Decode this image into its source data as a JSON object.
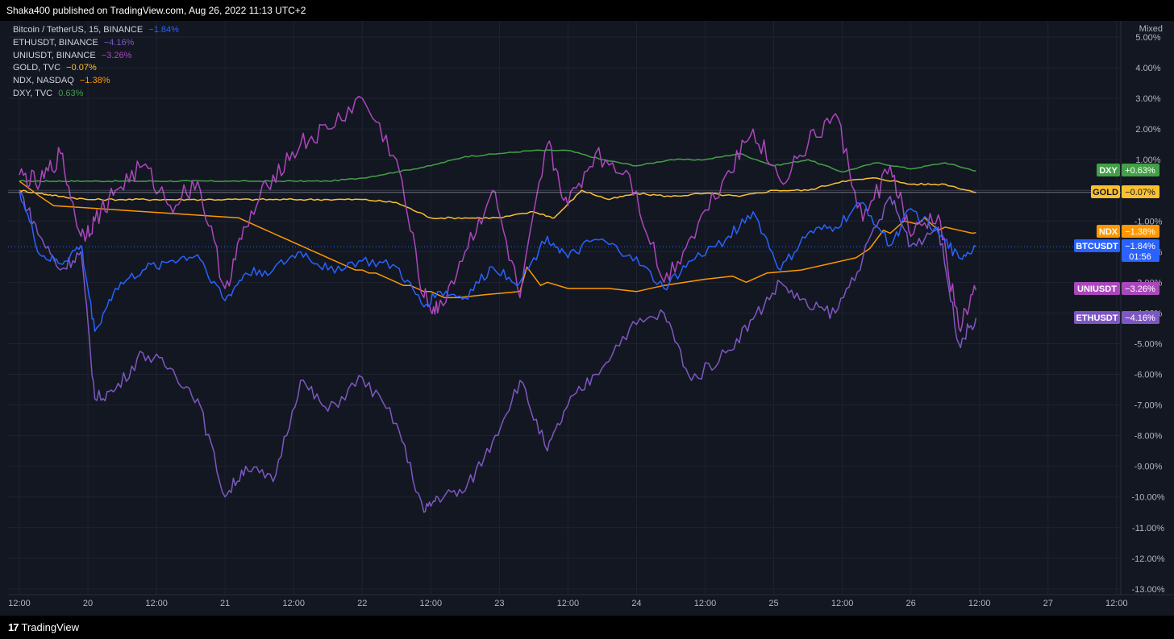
{
  "header": {
    "published": "Shaka400 published on TradingView.com, Aug 26, 2022 11:13 UTC+2"
  },
  "footer": {
    "brand": "TradingView"
  },
  "scale_mode": "Mixed",
  "colors": {
    "background": "#131722",
    "grid": "#1f2330",
    "axis_text": "#b2b5be",
    "btc": "#2962ff",
    "eth": "#7e57c2",
    "uni": "#ab47bc",
    "gold": "#fbc02d",
    "ndx": "#ff9800",
    "dxy": "#43a047"
  },
  "legend": [
    {
      "name": "Bitcoin / TetherUS, 15, BINANCE",
      "value": "−1.84%",
      "color": "#2962ff"
    },
    {
      "name": "ETHUSDT, BINANCE",
      "value": "−4.16%",
      "color": "#7e57c2"
    },
    {
      "name": "UNIUSDT, BINANCE",
      "value": "−3.26%",
      "color": "#ab47bc"
    },
    {
      "name": "GOLD, TVC",
      "value": "−0.07%",
      "color": "#fbc02d"
    },
    {
      "name": "NDX, NASDAQ",
      "value": "−1.38%",
      "color": "#ff9800"
    },
    {
      "name": "DXY, TVC",
      "value": "0.63%",
      "color": "#43a047"
    }
  ],
  "chart_data": {
    "type": "line",
    "y_unit": "percent change",
    "ylim": [
      -13,
      5
    ],
    "y_ticks": [
      "5.00%",
      "4.00%",
      "3.00%",
      "2.00%",
      "1.00%",
      "-1.00%",
      "-2.00%",
      "-3.00%",
      "-4.00%",
      "-5.00%",
      "-6.00%",
      "-7.00%",
      "-8.00%",
      "-9.00%",
      "-10.00%",
      "-11.00%",
      "-12.00%",
      "-13.00%"
    ],
    "x_ticks": [
      "12:00",
      "20",
      "12:00",
      "21",
      "12:00",
      "22",
      "12:00",
      "23",
      "12:00",
      "24",
      "12:00",
      "25",
      "12:00",
      "26",
      "12:00",
      "27",
      "12:00"
    ],
    "x_range": [
      0,
      16
    ],
    "grid": true,
    "series": [
      {
        "name": "BTCUSDT",
        "color": "#2962ff",
        "last_label": "−1.84%",
        "countdown": "01:56",
        "x": [
          0,
          0.3,
          0.6,
          0.9,
          1.1,
          1.4,
          1.8,
          2.2,
          2.6,
          3.0,
          3.3,
          3.7,
          4.1,
          4.5,
          5.0,
          5.5,
          5.9,
          6.1,
          6.5,
          6.9,
          7.3,
          7.7,
          8.0,
          8.4,
          8.9,
          9.4,
          9.8,
          10.3,
          10.7,
          11.1,
          11.5,
          11.9,
          12.3,
          12.7,
          13.0,
          13.4,
          13.7,
          13.95
        ],
        "y": [
          0.0,
          -2.1,
          -2.4,
          -1.8,
          -4.6,
          -3.2,
          -2.6,
          -2.3,
          -2.1,
          -3.6,
          -2.7,
          -2.6,
          -2.0,
          -2.6,
          -2.3,
          -2.5,
          -3.8,
          -3.3,
          -3.5,
          -2.5,
          -3.0,
          -1.5,
          -2.2,
          -1.6,
          -2.1,
          -3.2,
          -2.3,
          -1.6,
          -0.7,
          -2.6,
          -1.4,
          -1.2,
          -0.4,
          -1.8,
          -0.6,
          -1.4,
          -2.2,
          -1.84
        ]
      },
      {
        "name": "ETHUSDT",
        "color": "#7e57c2",
        "last_label": "−4.16%",
        "x": [
          0,
          0.3,
          0.6,
          0.9,
          1.1,
          1.4,
          1.8,
          2.2,
          2.6,
          3.0,
          3.3,
          3.7,
          4.1,
          4.5,
          5.0,
          5.5,
          5.9,
          6.1,
          6.5,
          6.9,
          7.3,
          7.7,
          8.0,
          8.4,
          8.9,
          9.4,
          9.8,
          10.3,
          10.7,
          11.1,
          11.5,
          11.9,
          12.3,
          12.7,
          13.0,
          13.4,
          13.7,
          13.95
        ],
        "y": [
          0.0,
          -1.5,
          -2.6,
          -2.0,
          -6.8,
          -6.5,
          -5.3,
          -5.8,
          -6.8,
          -10.0,
          -9.0,
          -9.5,
          -6.2,
          -7.2,
          -6.1,
          -7.6,
          -10.5,
          -10.0,
          -9.8,
          -8.2,
          -6.2,
          -8.5,
          -7.0,
          -6.0,
          -4.5,
          -4.0,
          -6.2,
          -5.3,
          -4.2,
          -3.0,
          -3.8,
          -4.0,
          -2.2,
          -0.2,
          -1.8,
          -1.2,
          -5.0,
          -4.16
        ]
      },
      {
        "name": "UNIUSDT",
        "color": "#ab47bc",
        "last_label": "−3.26%",
        "x": [
          0,
          0.3,
          0.6,
          0.9,
          1.1,
          1.4,
          1.8,
          2.2,
          2.6,
          3.0,
          3.3,
          3.7,
          4.1,
          4.5,
          5.0,
          5.5,
          5.9,
          6.1,
          6.5,
          6.9,
          7.3,
          7.7,
          8.0,
          8.4,
          8.9,
          9.4,
          9.8,
          10.3,
          10.7,
          11.1,
          11.5,
          11.9,
          12.3,
          12.7,
          13.0,
          13.4,
          13.7,
          13.95
        ],
        "y": [
          0.5,
          0.2,
          1.2,
          -1.5,
          -1.0,
          0.0,
          0.8,
          -0.5,
          0.3,
          -3.2,
          -1.2,
          0.5,
          1.5,
          2.0,
          3.0,
          1.0,
          -3.5,
          -4.0,
          -2.0,
          0.0,
          -3.5,
          1.5,
          -0.5,
          1.2,
          0.5,
          -3.0,
          -1.5,
          0.5,
          2.0,
          0.3,
          1.5,
          2.5,
          -1.0,
          0.8,
          -1.5,
          -0.8,
          -4.5,
          -3.26
        ]
      },
      {
        "name": "GOLD",
        "color": "#fbc02d",
        "last_label": "−0.07%",
        "x": [
          0,
          0.3,
          0.6,
          1.0,
          1.5,
          2.0,
          2.5,
          3.0,
          3.5,
          4.0,
          4.5,
          5.0,
          5.5,
          6.0,
          6.5,
          7.0,
          7.5,
          7.8,
          8.2,
          8.6,
          9.0,
          9.5,
          10.0,
          10.5,
          11.0,
          11.5,
          12.0,
          12.5,
          13.0,
          13.5,
          13.95
        ],
        "y": [
          0.0,
          -0.1,
          -0.2,
          -0.3,
          -0.3,
          -0.3,
          -0.3,
          -0.3,
          -0.3,
          -0.3,
          -0.3,
          -0.3,
          -0.4,
          -0.9,
          -0.9,
          -0.9,
          -0.7,
          -0.9,
          0.0,
          -0.3,
          -0.1,
          -0.2,
          -0.1,
          -0.2,
          0.0,
          0.0,
          0.3,
          0.4,
          0.2,
          0.2,
          -0.07
        ]
      },
      {
        "name": "NDX",
        "color": "#ff9800",
        "last_label": "−1.38%",
        "x": [
          0,
          0.3,
          0.5,
          3.2,
          3.3,
          3.4,
          3.5,
          3.6,
          3.7,
          3.8,
          3.9,
          4.0,
          4.1,
          4.2,
          4.3,
          4.4,
          4.5,
          4.6,
          4.7,
          4.8,
          4.9,
          5.0,
          5.1,
          5.2,
          5.3,
          5.4,
          5.5,
          5.6,
          5.7,
          5.8,
          5.9,
          6.0,
          6.1,
          6.2,
          6.4,
          6.8,
          7.3,
          7.4,
          7.6,
          7.7,
          8.0,
          8.6,
          9.0,
          9.4,
          10.0,
          10.4,
          10.6,
          10.9,
          11.4,
          11.6,
          11.8,
          12.0,
          12.2,
          12.4,
          12.6,
          12.7,
          12.9,
          13.1,
          13.2,
          13.4,
          13.5,
          13.7,
          13.9,
          13.95
        ],
        "y": [
          0.3,
          -0.2,
          -0.5,
          -0.9,
          -1.0,
          -1.1,
          -1.2,
          -1.3,
          -1.4,
          -1.5,
          -1.6,
          -1.7,
          -1.8,
          -1.9,
          -2.0,
          -2.1,
          -2.2,
          -2.3,
          -2.4,
          -2.5,
          -2.6,
          -2.6,
          -2.7,
          -2.7,
          -2.8,
          -2.9,
          -3.0,
          -3.1,
          -3.1,
          -3.2,
          -3.3,
          -3.3,
          -3.4,
          -3.5,
          -3.5,
          -3.4,
          -3.3,
          -2.5,
          -3.1,
          -3.0,
          -3.2,
          -3.2,
          -3.3,
          -3.1,
          -2.9,
          -2.8,
          -3.0,
          -2.7,
          -2.6,
          -2.5,
          -2.4,
          -2.3,
          -2.2,
          -1.9,
          -1.3,
          -1.4,
          -1.0,
          -1.1,
          -0.9,
          -1.3,
          -1.2,
          -1.3,
          -1.4,
          -1.38
        ]
      },
      {
        "name": "DXY",
        "color": "#43a047",
        "last_label": "+0.63%",
        "x": [
          0,
          0.3,
          0.6,
          1.0,
          1.5,
          2.0,
          2.5,
          3.0,
          3.5,
          4.0,
          4.5,
          5.0,
          5.5,
          6.0,
          6.5,
          7.0,
          7.5,
          8.0,
          8.5,
          9.0,
          9.5,
          10.0,
          10.5,
          11.0,
          11.5,
          12.0,
          12.5,
          13.0,
          13.5,
          13.95
        ],
        "y": [
          0.3,
          0.3,
          0.3,
          0.3,
          0.3,
          0.3,
          0.3,
          0.3,
          0.3,
          0.3,
          0.3,
          0.4,
          0.6,
          0.8,
          1.1,
          1.2,
          1.3,
          1.3,
          1.0,
          0.8,
          1.0,
          1.0,
          1.2,
          0.8,
          1.0,
          0.6,
          0.9,
          0.7,
          0.9,
          0.63
        ]
      }
    ]
  }
}
